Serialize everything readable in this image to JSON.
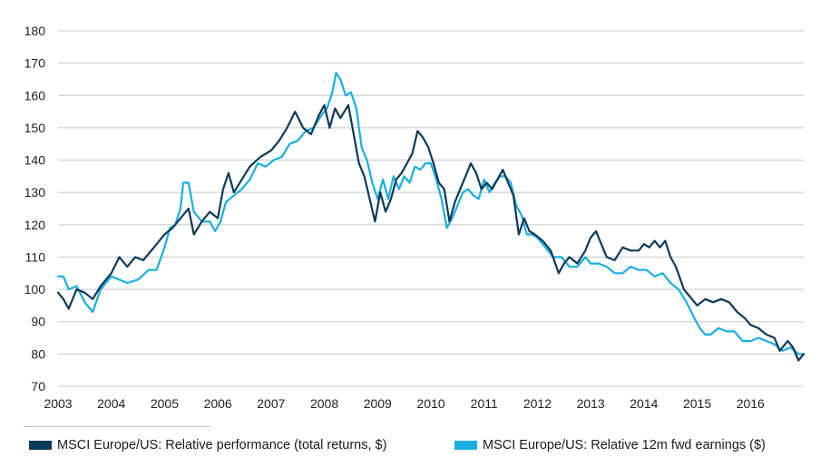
{
  "chart_data": {
    "type": "line",
    "title": "",
    "xlabel": "",
    "ylabel": "",
    "xlim": [
      2003,
      2017
    ],
    "ylim": [
      70,
      180
    ],
    "x_ticks": [
      "2003",
      "2004",
      "2005",
      "2006",
      "2007",
      "2008",
      "2009",
      "2010",
      "2011",
      "2012",
      "2013",
      "2014",
      "2015",
      "2016"
    ],
    "y_ticks": [
      "70",
      "80",
      "90",
      "100",
      "110",
      "120",
      "130",
      "140",
      "150",
      "160",
      "170",
      "180"
    ],
    "grid": "horizontal",
    "legend_position": "bottom",
    "series": [
      {
        "name": "MSCI Europe/US: Relative performance (total returns, $)",
        "color": "#0d3a58",
        "points": [
          [
            2003.0,
            99
          ],
          [
            2003.1,
            97
          ],
          [
            2003.2,
            94
          ],
          [
            2003.35,
            100
          ],
          [
            2003.5,
            99
          ],
          [
            2003.65,
            97
          ],
          [
            2003.8,
            101
          ],
          [
            2004.0,
            105
          ],
          [
            2004.15,
            110
          ],
          [
            2004.3,
            107
          ],
          [
            2004.45,
            110
          ],
          [
            2004.6,
            109
          ],
          [
            2004.8,
            113
          ],
          [
            2005.0,
            117
          ],
          [
            2005.15,
            119
          ],
          [
            2005.3,
            122
          ],
          [
            2005.45,
            125
          ],
          [
            2005.55,
            117
          ],
          [
            2005.7,
            121
          ],
          [
            2005.85,
            124
          ],
          [
            2006.0,
            122
          ],
          [
            2006.1,
            131
          ],
          [
            2006.2,
            136
          ],
          [
            2006.3,
            130
          ],
          [
            2006.45,
            134
          ],
          [
            2006.6,
            138
          ],
          [
            2006.8,
            141
          ],
          [
            2007.0,
            143
          ],
          [
            2007.15,
            146
          ],
          [
            2007.3,
            150
          ],
          [
            2007.45,
            155
          ],
          [
            2007.6,
            150
          ],
          [
            2007.75,
            148
          ],
          [
            2007.9,
            154
          ],
          [
            2008.0,
            157
          ],
          [
            2008.1,
            150
          ],
          [
            2008.2,
            156
          ],
          [
            2008.3,
            153
          ],
          [
            2008.45,
            157
          ],
          [
            2008.55,
            148
          ],
          [
            2008.65,
            139
          ],
          [
            2008.75,
            135
          ],
          [
            2008.85,
            128
          ],
          [
            2008.95,
            121
          ],
          [
            2009.05,
            130
          ],
          [
            2009.15,
            124
          ],
          [
            2009.25,
            128
          ],
          [
            2009.35,
            134
          ],
          [
            2009.45,
            136
          ],
          [
            2009.55,
            139
          ],
          [
            2009.65,
            142
          ],
          [
            2009.75,
            149
          ],
          [
            2009.85,
            147
          ],
          [
            2009.95,
            144
          ],
          [
            2010.05,
            139
          ],
          [
            2010.15,
            133
          ],
          [
            2010.25,
            131
          ],
          [
            2010.35,
            121
          ],
          [
            2010.45,
            127
          ],
          [
            2010.55,
            131
          ],
          [
            2010.65,
            135
          ],
          [
            2010.75,
            139
          ],
          [
            2010.85,
            136
          ],
          [
            2010.95,
            131
          ],
          [
            2011.05,
            133
          ],
          [
            2011.15,
            131
          ],
          [
            2011.25,
            134
          ],
          [
            2011.35,
            137
          ],
          [
            2011.45,
            133
          ],
          [
            2011.55,
            129
          ],
          [
            2011.65,
            117
          ],
          [
            2011.75,
            122
          ],
          [
            2011.85,
            118
          ],
          [
            2011.95,
            117
          ],
          [
            2012.1,
            115
          ],
          [
            2012.25,
            112
          ],
          [
            2012.4,
            105
          ],
          [
            2012.5,
            108
          ],
          [
            2012.6,
            110
          ],
          [
            2012.75,
            108
          ],
          [
            2012.9,
            112
          ],
          [
            2013.0,
            116
          ],
          [
            2013.1,
            118
          ],
          [
            2013.2,
            114
          ],
          [
            2013.3,
            110
          ],
          [
            2013.45,
            109
          ],
          [
            2013.6,
            113
          ],
          [
            2013.75,
            112
          ],
          [
            2013.9,
            112
          ],
          [
            2014.0,
            114
          ],
          [
            2014.1,
            113
          ],
          [
            2014.2,
            115
          ],
          [
            2014.3,
            113
          ],
          [
            2014.4,
            115
          ],
          [
            2014.5,
            110
          ],
          [
            2014.6,
            107
          ],
          [
            2014.75,
            100
          ],
          [
            2014.9,
            97
          ],
          [
            2015.0,
            95
          ],
          [
            2015.15,
            97
          ],
          [
            2015.3,
            96
          ],
          [
            2015.45,
            97
          ],
          [
            2015.6,
            96
          ],
          [
            2015.75,
            93
          ],
          [
            2015.9,
            91
          ],
          [
            2016.0,
            89
          ],
          [
            2016.15,
            88
          ],
          [
            2016.3,
            86
          ],
          [
            2016.45,
            85
          ],
          [
            2016.55,
            81
          ],
          [
            2016.7,
            84
          ],
          [
            2016.8,
            82
          ],
          [
            2016.9,
            78
          ],
          [
            2017.0,
            80
          ]
        ]
      },
      {
        "name": "MSCI Europe/US: Relative 12m fwd earnings ($)",
        "color": "#1aaee0",
        "points": [
          [
            2003.0,
            104
          ],
          [
            2003.1,
            104
          ],
          [
            2003.2,
            100
          ],
          [
            2003.35,
            101
          ],
          [
            2003.5,
            96
          ],
          [
            2003.65,
            93
          ],
          [
            2003.8,
            100
          ],
          [
            2004.0,
            104
          ],
          [
            2004.15,
            103
          ],
          [
            2004.3,
            102
          ],
          [
            2004.5,
            103
          ],
          [
            2004.7,
            106
          ],
          [
            2004.85,
            106
          ],
          [
            2005.0,
            113
          ],
          [
            2005.1,
            119
          ],
          [
            2005.2,
            120
          ],
          [
            2005.3,
            125
          ],
          [
            2005.35,
            133
          ],
          [
            2005.45,
            133
          ],
          [
            2005.55,
            124
          ],
          [
            2005.7,
            121
          ],
          [
            2005.85,
            121
          ],
          [
            2005.95,
            118
          ],
          [
            2006.05,
            121
          ],
          [
            2006.15,
            127
          ],
          [
            2006.3,
            129
          ],
          [
            2006.45,
            131
          ],
          [
            2006.6,
            134
          ],
          [
            2006.75,
            139
          ],
          [
            2006.9,
            138
          ],
          [
            2007.05,
            140
          ],
          [
            2007.2,
            141
          ],
          [
            2007.35,
            145
          ],
          [
            2007.5,
            146
          ],
          [
            2007.65,
            149
          ],
          [
            2007.8,
            150
          ],
          [
            2007.95,
            154
          ],
          [
            2008.05,
            156
          ],
          [
            2008.15,
            161
          ],
          [
            2008.22,
            167
          ],
          [
            2008.3,
            165
          ],
          [
            2008.4,
            160
          ],
          [
            2008.5,
            161
          ],
          [
            2008.6,
            156
          ],
          [
            2008.7,
            144
          ],
          [
            2008.8,
            140
          ],
          [
            2008.9,
            133
          ],
          [
            2009.0,
            128
          ],
          [
            2009.1,
            134
          ],
          [
            2009.2,
            128
          ],
          [
            2009.3,
            135
          ],
          [
            2009.4,
            131
          ],
          [
            2009.5,
            135
          ],
          [
            2009.6,
            133
          ],
          [
            2009.7,
            138
          ],
          [
            2009.8,
            137
          ],
          [
            2009.9,
            139
          ],
          [
            2010.0,
            139
          ],
          [
            2010.1,
            134
          ],
          [
            2010.2,
            128
          ],
          [
            2010.3,
            119
          ],
          [
            2010.4,
            122
          ],
          [
            2010.5,
            126
          ],
          [
            2010.6,
            130
          ],
          [
            2010.7,
            131
          ],
          [
            2010.8,
            129
          ],
          [
            2010.9,
            128
          ],
          [
            2011.0,
            134
          ],
          [
            2011.1,
            130
          ],
          [
            2011.2,
            133
          ],
          [
            2011.3,
            135
          ],
          [
            2011.4,
            135
          ],
          [
            2011.5,
            133
          ],
          [
            2011.6,
            126
          ],
          [
            2011.7,
            123
          ],
          [
            2011.8,
            117
          ],
          [
            2011.9,
            117
          ],
          [
            2012.0,
            116
          ],
          [
            2012.15,
            113
          ],
          [
            2012.3,
            110
          ],
          [
            2012.45,
            110
          ],
          [
            2012.6,
            107
          ],
          [
            2012.75,
            107
          ],
          [
            2012.9,
            110
          ],
          [
            2013.0,
            108
          ],
          [
            2013.15,
            108
          ],
          [
            2013.3,
            107
          ],
          [
            2013.45,
            105
          ],
          [
            2013.6,
            105
          ],
          [
            2013.75,
            107
          ],
          [
            2013.9,
            106
          ],
          [
            2014.05,
            106
          ],
          [
            2014.2,
            104
          ],
          [
            2014.35,
            105
          ],
          [
            2014.5,
            102
          ],
          [
            2014.65,
            100
          ],
          [
            2014.8,
            96
          ],
          [
            2014.95,
            91
          ],
          [
            2015.05,
            88
          ],
          [
            2015.15,
            86
          ],
          [
            2015.25,
            86
          ],
          [
            2015.4,
            88
          ],
          [
            2015.55,
            87
          ],
          [
            2015.7,
            87
          ],
          [
            2015.85,
            84
          ],
          [
            2016.0,
            84
          ],
          [
            2016.15,
            85
          ],
          [
            2016.3,
            84
          ],
          [
            2016.45,
            83
          ],
          [
            2016.6,
            81
          ],
          [
            2016.75,
            82
          ],
          [
            2016.9,
            80
          ],
          [
            2017.0,
            80
          ]
        ]
      }
    ]
  }
}
